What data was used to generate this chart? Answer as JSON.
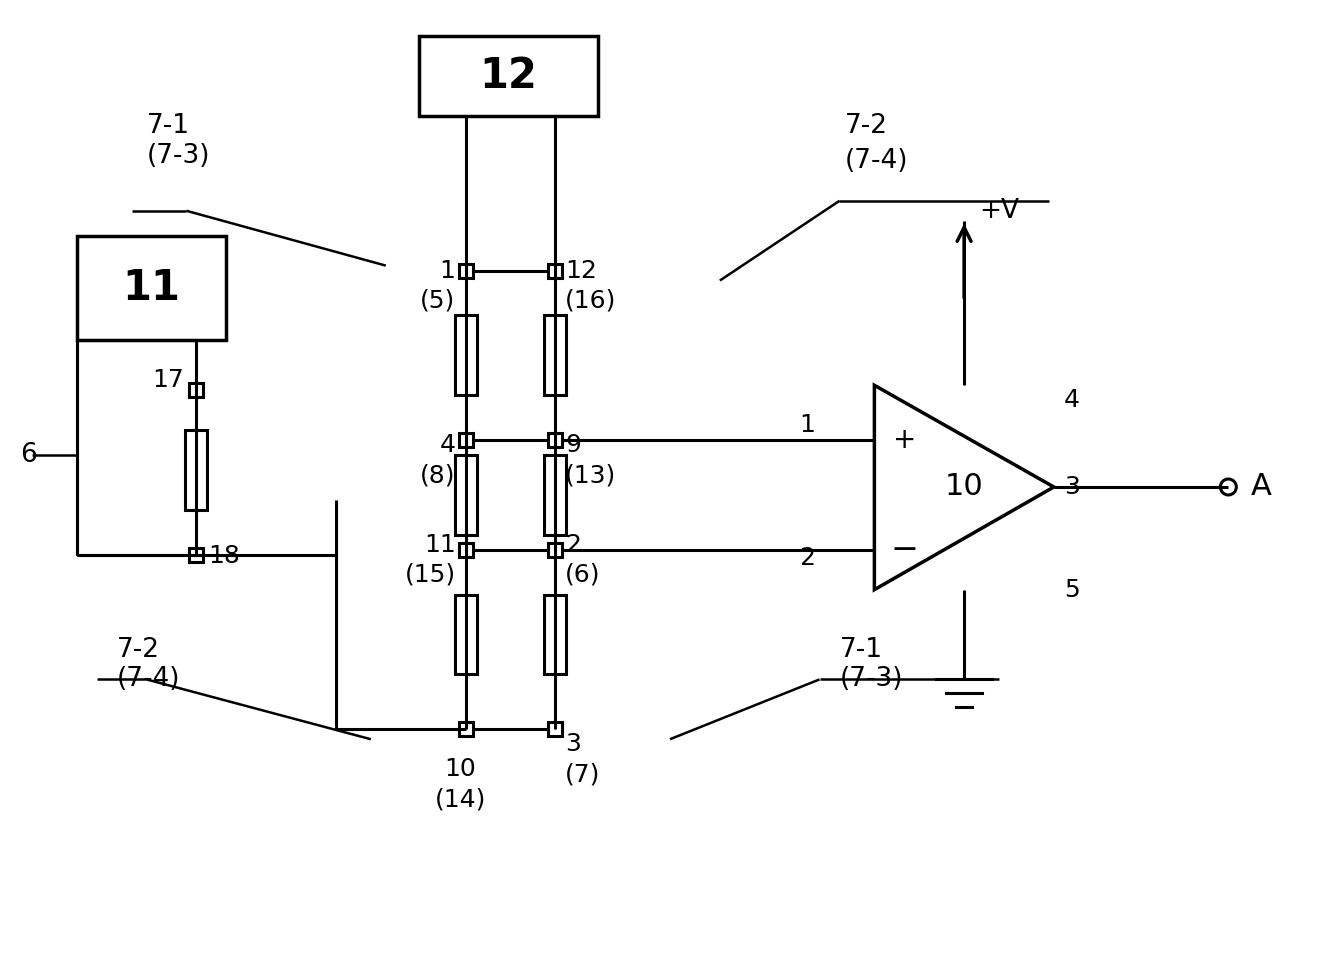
{
  "bg_color": "#ffffff",
  "lc": "#000000",
  "lw": 2.2,
  "fig_w": 13.2,
  "fig_h": 9.57,
  "dpi": 100,
  "xlim": [
    0,
    1320
  ],
  "ylim": [
    0,
    957
  ]
}
